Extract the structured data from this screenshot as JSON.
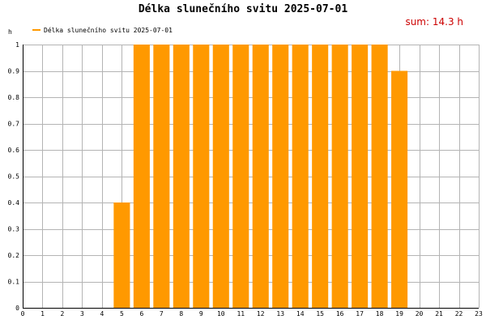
{
  "chart_data": {
    "type": "bar",
    "title": "Délka slunečního svitu 2025-07-01",
    "ylabel": "h",
    "xlabel": "",
    "sum_label": "sum: 14.3 h",
    "legend": {
      "entries": [
        "Délka slunečního svitu 2025-07-01"
      ],
      "placement": "top-left"
    },
    "x": [
      0,
      1,
      2,
      3,
      4,
      5,
      6,
      7,
      8,
      9,
      10,
      11,
      12,
      13,
      14,
      15,
      16,
      17,
      18,
      19,
      20,
      21,
      22,
      23
    ],
    "x_tick_labels": [
      "0",
      "1",
      "2",
      "3",
      "4",
      "5",
      "6",
      "7",
      "8",
      "9",
      "10",
      "11",
      "12",
      "13",
      "14",
      "15",
      "16",
      "17",
      "18",
      "19",
      "20",
      "21",
      "22",
      "23"
    ],
    "xlim": [
      0,
      23
    ],
    "series": [
      {
        "name": "Délka slunečního svitu 2025-07-01",
        "values": [
          0,
          0,
          0,
          0,
          0,
          0.4,
          1,
          1,
          1,
          1,
          1,
          1,
          1,
          1,
          1,
          1,
          1,
          1,
          1,
          0.9,
          0,
          0,
          0,
          0
        ]
      }
    ],
    "ylim": [
      0,
      1
    ],
    "y_ticks": [
      0,
      0.1,
      0.2,
      0.3,
      0.4,
      0.5,
      0.6,
      0.7,
      0.8,
      0.9,
      1
    ],
    "y_tick_labels": [
      "0",
      "0.1",
      "0.2",
      "0.3",
      "0.4",
      "0.5",
      "0.6",
      "0.7",
      "0.8",
      "0.9",
      "1"
    ],
    "grid": true,
    "colors": {
      "bar": "#ff9900",
      "sum_text": "#cc0000",
      "grid": "#b4b4b4",
      "axis": "#000000"
    }
  }
}
